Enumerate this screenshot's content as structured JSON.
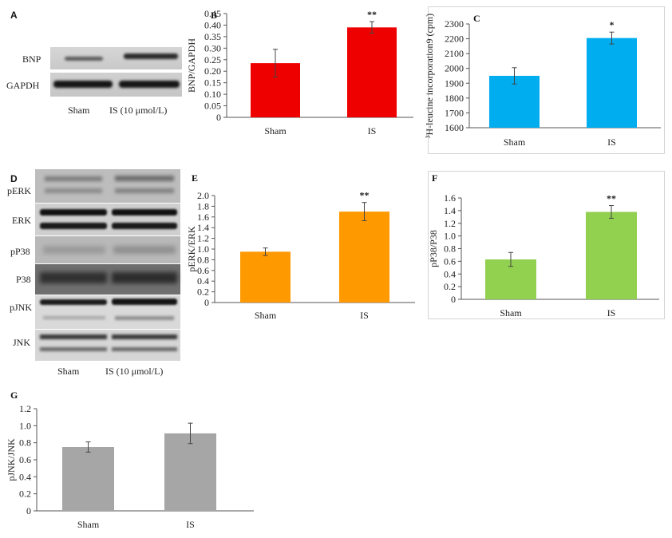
{
  "panels": {
    "A": {
      "letter": "A",
      "rows": [
        "BNP",
        "GAPDH"
      ],
      "lanes": [
        "Sham",
        "IS (10 μmol/L)"
      ]
    },
    "D": {
      "letter": "D",
      "rows": [
        "pERK",
        "ERK",
        "pP38",
        "P38",
        "pJNK",
        "JNK"
      ],
      "lanes": [
        "Sham",
        "IS (10 μmol/L)"
      ]
    }
  },
  "colors": {
    "B": "#ee0000",
    "C": "#00adef",
    "E": "#ff9900",
    "F": "#92d050",
    "G": "#a6a6a6"
  },
  "chart_data": [
    {
      "panel": "B",
      "type": "bar",
      "categories": [
        "Sham",
        "IS"
      ],
      "values": [
        0.235,
        0.39
      ],
      "errors": [
        0.06,
        0.025
      ],
      "annotations": [
        "",
        "**"
      ],
      "ylabel": "BNP/GAPDH",
      "ylim": [
        0,
        0.45
      ],
      "yticks": [
        "0",
        "0.05",
        "0.10",
        "0.15",
        "0.20",
        "0.25",
        "0.30",
        "0.35",
        "0.40",
        "0.45"
      ],
      "grid": false
    },
    {
      "panel": "C",
      "type": "bar",
      "categories": [
        "Sham",
        "IS"
      ],
      "values": [
        1950,
        2205
      ],
      "errors": [
        55,
        40
      ],
      "annotations": [
        "",
        "*"
      ],
      "ylabel": "³H-leucine incorporation9 (cpm)",
      "ylim": [
        1600,
        2300
      ],
      "yticks": [
        "1600",
        "1700",
        "1800",
        "1900",
        "2000",
        "2100",
        "2200",
        "2300"
      ],
      "grid": false
    },
    {
      "panel": "E",
      "type": "bar",
      "categories": [
        "Sham",
        "IS"
      ],
      "values": [
        0.95,
        1.7
      ],
      "errors": [
        0.07,
        0.17
      ],
      "annotations": [
        "",
        "**"
      ],
      "ylabel": "pERK/ERK",
      "ylim": [
        0,
        2.0
      ],
      "yticks": [
        "0",
        "0.2",
        "0.4",
        "0.6",
        "0.8",
        "1.0",
        "1.2",
        "1.4",
        "1.6",
        "1.8",
        "2.0"
      ],
      "grid": false
    },
    {
      "panel": "F",
      "type": "bar",
      "categories": [
        "Sham",
        "IS"
      ],
      "values": [
        0.63,
        1.38
      ],
      "errors": [
        0.11,
        0.1
      ],
      "annotations": [
        "",
        "**"
      ],
      "ylabel": "pP38/P38",
      "ylim": [
        0,
        1.6
      ],
      "yticks": [
        "0",
        "0.2",
        "0.4",
        "0.6",
        "0.8",
        "1.0",
        "1.2",
        "1.4",
        "1.6"
      ],
      "grid": false
    },
    {
      "panel": "G",
      "type": "bar",
      "categories": [
        "Sham",
        "IS"
      ],
      "values": [
        0.75,
        0.91
      ],
      "errors": [
        0.06,
        0.12
      ],
      "annotations": [
        "",
        ""
      ],
      "ylabel": "pJNK/JNK",
      "ylim": [
        0,
        1.2
      ],
      "yticks": [
        "0",
        "0.2",
        "0.4",
        "0.6",
        "0.8",
        "1.0",
        "1.2"
      ],
      "grid": false
    }
  ]
}
